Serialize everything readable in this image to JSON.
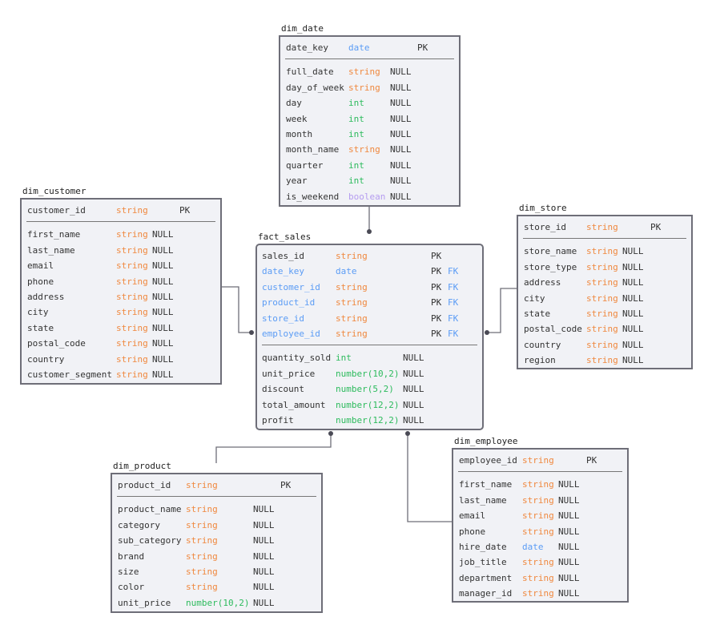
{
  "colors": {
    "border": "#6e6e78",
    "background": "#f1f2f6",
    "string": "#f0883e",
    "date": "#5b9cf5",
    "int": "#2dbb5d",
    "boolean": "#b59cf0",
    "fk": "#5b9cf5"
  },
  "tables": [
    {
      "id": "dim_date",
      "name": "dim_date",
      "keys": [
        {
          "name": "date_key",
          "type": "date",
          "key": "PK"
        }
      ],
      "columns": [
        {
          "name": "full_date",
          "type": "string",
          "null": "NULL"
        },
        {
          "name": "day_of_week",
          "type": "string",
          "null": "NULL"
        },
        {
          "name": "day",
          "type": "int",
          "null": "NULL"
        },
        {
          "name": "week",
          "type": "int",
          "null": "NULL"
        },
        {
          "name": "month",
          "type": "int",
          "null": "NULL"
        },
        {
          "name": "month_name",
          "type": "string",
          "null": "NULL"
        },
        {
          "name": "quarter",
          "type": "int",
          "null": "NULL"
        },
        {
          "name": "year",
          "type": "int",
          "null": "NULL"
        },
        {
          "name": "is_weekend",
          "type": "boolean",
          "null": "NULL"
        }
      ]
    },
    {
      "id": "dim_customer",
      "name": "dim_customer",
      "keys": [
        {
          "name": "customer_id",
          "type": "string",
          "key": "PK"
        }
      ],
      "columns": [
        {
          "name": "first_name",
          "type": "string",
          "null": "NULL"
        },
        {
          "name": "last_name",
          "type": "string",
          "null": "NULL"
        },
        {
          "name": "email",
          "type": "string",
          "null": "NULL"
        },
        {
          "name": "phone",
          "type": "string",
          "null": "NULL"
        },
        {
          "name": "address",
          "type": "string",
          "null": "NULL"
        },
        {
          "name": "city",
          "type": "string",
          "null": "NULL"
        },
        {
          "name": "state",
          "type": "string",
          "null": "NULL"
        },
        {
          "name": "postal_code",
          "type": "string",
          "null": "NULL"
        },
        {
          "name": "country",
          "type": "string",
          "null": "NULL"
        },
        {
          "name": "customer_segment",
          "type": "string",
          "null": "NULL"
        }
      ]
    },
    {
      "id": "fact_sales",
      "name": "fact_sales",
      "keys": [
        {
          "name": "sales_id",
          "type": "string",
          "key": "PK"
        },
        {
          "name": "date_key",
          "type": "date",
          "key": "PK",
          "fk": "FK"
        },
        {
          "name": "customer_id",
          "type": "string",
          "key": "PK",
          "fk": "FK"
        },
        {
          "name": "product_id",
          "type": "string",
          "key": "PK",
          "fk": "FK"
        },
        {
          "name": "store_id",
          "type": "string",
          "key": "PK",
          "fk": "FK"
        },
        {
          "name": "employee_id",
          "type": "string",
          "key": "PK",
          "fk": "FK"
        }
      ],
      "columns": [
        {
          "name": "quantity_sold",
          "type": "int",
          "null": "NULL"
        },
        {
          "name": "unit_price",
          "type": "number(10,2)",
          "null": "NULL"
        },
        {
          "name": "discount",
          "type": "number(5,2)",
          "null": "NULL"
        },
        {
          "name": "total_amount",
          "type": "number(12,2)",
          "null": "NULL"
        },
        {
          "name": "profit",
          "type": "number(12,2)",
          "null": "NULL"
        }
      ]
    },
    {
      "id": "dim_store",
      "name": "dim_store",
      "keys": [
        {
          "name": "store_id",
          "type": "string",
          "key": "PK"
        }
      ],
      "columns": [
        {
          "name": "store_name",
          "type": "string",
          "null": "NULL"
        },
        {
          "name": "store_type",
          "type": "string",
          "null": "NULL"
        },
        {
          "name": "address",
          "type": "string",
          "null": "NULL"
        },
        {
          "name": "city",
          "type": "string",
          "null": "NULL"
        },
        {
          "name": "state",
          "type": "string",
          "null": "NULL"
        },
        {
          "name": "postal_code",
          "type": "string",
          "null": "NULL"
        },
        {
          "name": "country",
          "type": "string",
          "null": "NULL"
        },
        {
          "name": "region",
          "type": "string",
          "null": "NULL"
        }
      ]
    },
    {
      "id": "dim_product",
      "name": "dim_product",
      "keys": [
        {
          "name": "product_id",
          "type": "string",
          "key": "PK"
        }
      ],
      "columns": [
        {
          "name": "product_name",
          "type": "string",
          "null": "NULL"
        },
        {
          "name": "category",
          "type": "string",
          "null": "NULL"
        },
        {
          "name": "sub_category",
          "type": "string",
          "null": "NULL"
        },
        {
          "name": "brand",
          "type": "string",
          "null": "NULL"
        },
        {
          "name": "size",
          "type": "string",
          "null": "NULL"
        },
        {
          "name": "color",
          "type": "string",
          "null": "NULL"
        },
        {
          "name": "unit_price",
          "type": "number(10,2)",
          "null": "NULL"
        }
      ]
    },
    {
      "id": "dim_employee",
      "name": "dim_employee",
      "keys": [
        {
          "name": "employee_id",
          "type": "string",
          "key": "PK"
        }
      ],
      "columns": [
        {
          "name": "first_name",
          "type": "string",
          "null": "NULL"
        },
        {
          "name": "last_name",
          "type": "string",
          "null": "NULL"
        },
        {
          "name": "email",
          "type": "string",
          "null": "NULL"
        },
        {
          "name": "phone",
          "type": "string",
          "null": "NULL"
        },
        {
          "name": "hire_date",
          "type": "date",
          "null": "NULL"
        },
        {
          "name": "job_title",
          "type": "string",
          "null": "NULL"
        },
        {
          "name": "department",
          "type": "string",
          "null": "NULL"
        },
        {
          "name": "manager_id",
          "type": "string",
          "null": "NULL"
        }
      ]
    }
  ]
}
